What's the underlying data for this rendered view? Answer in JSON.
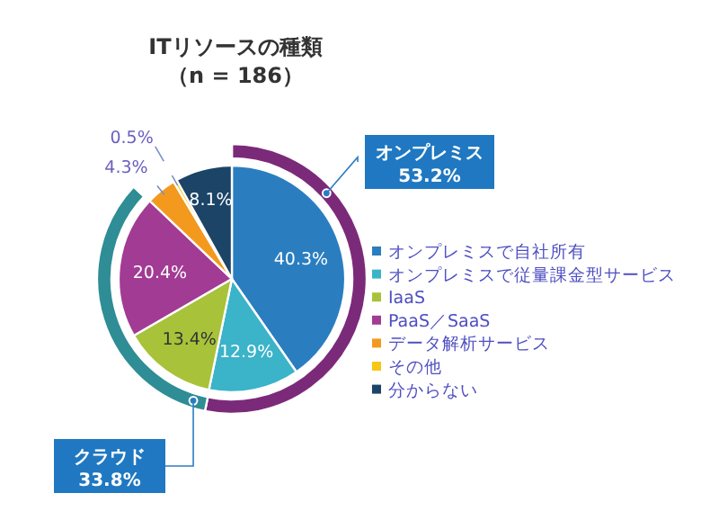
{
  "chart_data": [
    {
      "type": "pie",
      "title": "ITリソースの種類",
      "subtitle": "（n = 186）",
      "categories": [
        "オンプレミスで自社所有",
        "オンプレミスで従量課金型サービス",
        "IaaS",
        "PaaS／SaaS",
        "データ解析サービス",
        "その他",
        "分からない"
      ],
      "values": [
        40.3,
        12.9,
        13.4,
        20.4,
        4.3,
        0.5,
        8.1
      ],
      "value_labels": [
        "40.3%",
        "12.9%",
        "13.4%",
        "20.4%",
        "4.3%",
        "0.5%",
        "8.1%"
      ],
      "colors": [
        "#2a7ec0",
        "#3bb3c9",
        "#a8c23a",
        "#a23b94",
        "#f39a1e",
        "#f7c613",
        "#1b4467"
      ],
      "legend": "right"
    },
    {
      "type": "donut",
      "categories": [
        "オンプレミス",
        "クラウド",
        null
      ],
      "values": [
        53.2,
        33.8,
        13.0
      ],
      "value_labels": [
        "53.2%",
        "33.8%",
        null
      ],
      "colors": [
        "#7b2a7a",
        "#2e8d95",
        "#ffffff"
      ]
    }
  ]
}
